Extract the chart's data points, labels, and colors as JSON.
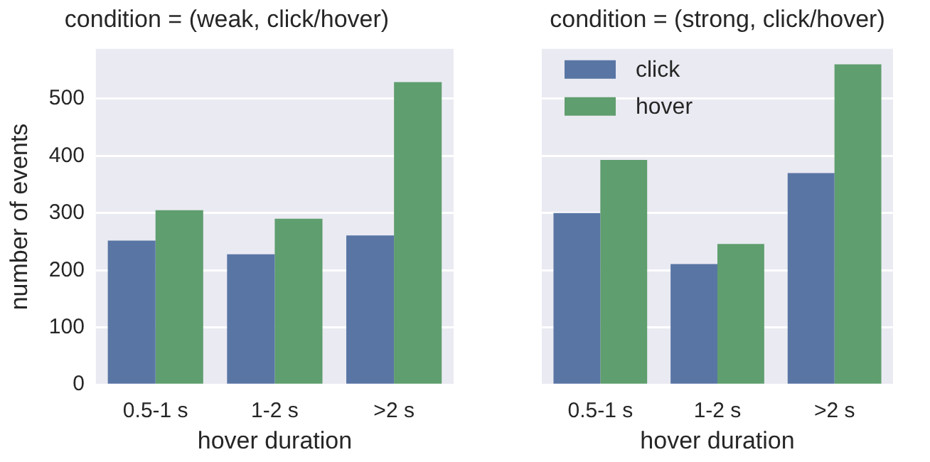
{
  "chart_data": [
    {
      "type": "bar",
      "title": "condition = (weak, click/hover)",
      "xlabel": "hover duration",
      "ylabel": "number of events",
      "categories": [
        "0.5-1 s",
        "1-2 s",
        ">2 s"
      ],
      "series": [
        {
          "color": "#5975a4",
          "values": [
            252,
            228,
            261
          ]
        },
        {
          "color": "#5f9e6e",
          "values": [
            305,
            290,
            529
          ]
        }
      ],
      "ylim": [
        0,
        587
      ],
      "yticks": [
        0,
        100,
        200,
        300,
        400,
        500
      ],
      "grid": "y",
      "legend": false
    },
    {
      "type": "bar",
      "title": "condition = (strong, click/hover)",
      "xlabel": "hover duration",
      "categories": [
        "0.5-1 s",
        "1-2 s",
        ">2 s"
      ],
      "series": [
        {
          "name": "click",
          "color": "#5975a4",
          "values": [
            300,
            211,
            370
          ]
        },
        {
          "name": "hover",
          "color": "#5f9e6e",
          "values": [
            393,
            246,
            560
          ]
        }
      ],
      "ylim": [
        0,
        587
      ],
      "yticks": [
        0,
        100,
        200,
        300,
        400,
        500
      ],
      "grid": "y",
      "legend": "top left",
      "tick_labels": "x"
    }
  ]
}
